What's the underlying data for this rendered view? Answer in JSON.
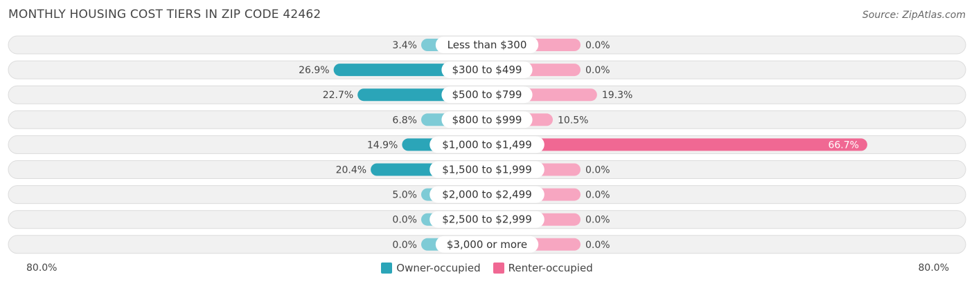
{
  "header": {
    "title": "MONTHLY HOUSING COST TIERS IN ZIP CODE 42462",
    "source": "Source: ZipAtlas.com"
  },
  "axis": {
    "left_label": "80.0%",
    "right_label": "80.0%"
  },
  "legend": {
    "owner_label": "Owner-occupied",
    "renter_label": "Renter-occupied"
  },
  "colors": {
    "owner": "#2ba5b8",
    "owner_light": "#7ecbd6",
    "renter": "#f06893",
    "renter_light": "#f7a6c1",
    "row_bg": "#f1f1f1",
    "row_border": "#dcdcdc"
  },
  "chart_data": {
    "type": "bar",
    "orientation": "horizontal-diverging",
    "title": "MONTHLY HOUSING COST TIERS IN ZIP CODE 42462",
    "xlim": [
      -80,
      80
    ],
    "categories": [
      "Less than $300",
      "$300 to $499",
      "$500 to $799",
      "$800 to $999",
      "$1,000 to $1,499",
      "$1,500 to $1,999",
      "$2,000 to $2,499",
      "$2,500 to $2,999",
      "$3,000 or more"
    ],
    "series": [
      {
        "name": "Owner-occupied",
        "values": [
          3.4,
          26.9,
          22.7,
          6.8,
          14.9,
          20.4,
          5.0,
          0.0,
          0.0
        ],
        "labels": [
          "3.4%",
          "26.9%",
          "22.7%",
          "6.8%",
          "14.9%",
          "20.4%",
          "5.0%",
          "0.0%",
          "0.0%"
        ]
      },
      {
        "name": "Renter-occupied",
        "values": [
          0.0,
          0.0,
          19.3,
          10.5,
          66.7,
          0.0,
          0.0,
          0.0,
          0.0
        ],
        "labels": [
          "0.0%",
          "0.0%",
          "19.3%",
          "10.5%",
          "66.7%",
          "0.0%",
          "0.0%",
          "0.0%",
          "0.0%"
        ]
      }
    ],
    "legend_position": "bottom-center"
  }
}
